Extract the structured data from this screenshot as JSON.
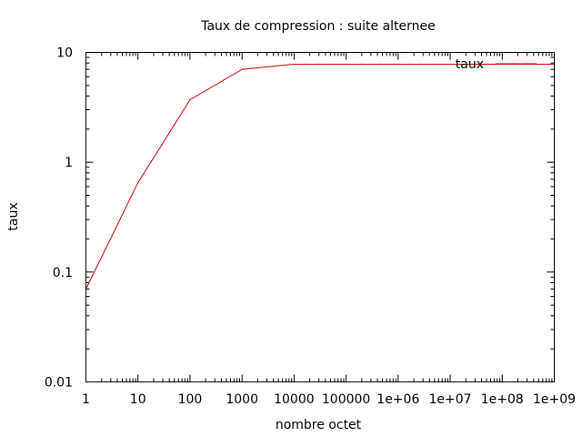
{
  "chart_data": {
    "type": "line",
    "title": "Taux de compression : suite alternee",
    "xlabel": "nombre octet",
    "ylabel": "taux",
    "x_scale": "log",
    "y_scale": "log",
    "xlim": [
      1,
      1000000000
    ],
    "ylim": [
      0.01,
      10
    ],
    "x_ticks": [
      1,
      10,
      100,
      1000,
      10000,
      100000,
      1000000,
      10000000,
      100000000,
      1000000000
    ],
    "x_tick_labels": [
      "1",
      "10",
      "100",
      "1000",
      "10000",
      "100000",
      "1e+06",
      "1e+07",
      "1e+08",
      "1e+09"
    ],
    "y_ticks": [
      0.01,
      0.1,
      1,
      10
    ],
    "y_tick_labels": [
      "0.01",
      "0.1",
      "1",
      "10"
    ],
    "grid": false,
    "legend_position": "top-right",
    "series": [
      {
        "name": "taux",
        "color": "#cc0000",
        "x": [
          1,
          10,
          100,
          1000,
          10000,
          100000,
          1000000,
          10000000,
          100000000,
          1000000000
        ],
        "y": [
          0.07,
          0.65,
          3.7,
          7.0,
          7.8,
          7.8,
          7.8,
          7.8,
          7.8,
          7.8
        ]
      }
    ]
  }
}
